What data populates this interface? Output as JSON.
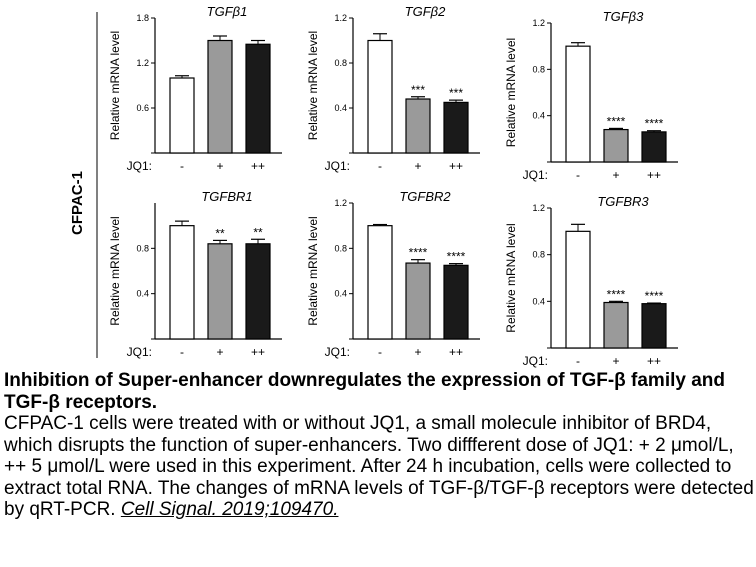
{
  "cell_line": "CFPAC-1",
  "caption": {
    "title": "Inhibition of Super-enhancer downregulates the expression of TGF-β family and TGF-β receptors.",
    "body": "CFPAC-1 cells were treated with or without JQ1, a small molecule inhibitor of BRD4, which disrupts the function of super-enhancers. Two diffferent dose of JQ1: + 2 μmol/L, ++ 5 μmol/L were used in this experiment. After 24 h incubation, cells were collected to extract total RNA. The changes of mRNA levels of TGF-β/TGF-β receptors were detected by qRT-PCR.",
    "citation": "Cell Signal. 2019;109470."
  },
  "colors": {
    "control": "#ffffff",
    "low_dose": "#9a9a9a",
    "high_dose": "#1a1a1a",
    "axis": "#000000"
  },
  "chart_data": [
    {
      "type": "bar",
      "title": "TGFβ1",
      "ylabel": "Relative mRNA level",
      "xaxis_prefix": "JQ1:",
      "categories": [
        "-",
        "+",
        "++"
      ],
      "values": [
        1.0,
        1.5,
        1.45
      ],
      "errors": [
        0.03,
        0.06,
        0.05
      ],
      "significance": [
        "",
        "",
        ""
      ],
      "ylim": [
        0,
        1.8
      ],
      "yticks": [
        "0.6",
        "1.2",
        "1.8"
      ]
    },
    {
      "type": "bar",
      "title": "TGFβ2",
      "ylabel": "Relative mRNA level",
      "xaxis_prefix": "JQ1:",
      "categories": [
        "-",
        "+",
        "++"
      ],
      "values": [
        1.0,
        0.48,
        0.45
      ],
      "errors": [
        0.06,
        0.02,
        0.02
      ],
      "significance": [
        "",
        "***",
        "***"
      ],
      "ylim": [
        0,
        1.2
      ],
      "yticks": [
        "0.4",
        "0.8",
        "1.2"
      ]
    },
    {
      "type": "bar",
      "title": "TGFβ3",
      "ylabel": "Relative mRNA level",
      "xaxis_prefix": "JQ1:",
      "categories": [
        "-",
        "+",
        "++"
      ],
      "values": [
        1.0,
        0.28,
        0.26
      ],
      "errors": [
        0.03,
        0.01,
        0.01
      ],
      "significance": [
        "",
        "****",
        "****"
      ],
      "ylim": [
        0,
        1.2
      ],
      "yticks": [
        "0.4",
        "0.8",
        "1.2"
      ]
    },
    {
      "type": "bar",
      "title": "TGFBR1",
      "ylabel": "Relative mRNA level",
      "xaxis_prefix": "JQ1:",
      "categories": [
        "-",
        "+",
        "++"
      ],
      "values": [
        1.0,
        0.84,
        0.84
      ],
      "errors": [
        0.04,
        0.03,
        0.04
      ],
      "significance": [
        "",
        "**",
        "**"
      ],
      "ylim": [
        0,
        1.2
      ],
      "yticks": [
        "0.4",
        "0.8"
      ]
    },
    {
      "type": "bar",
      "title": "TGFBR2",
      "ylabel": "Relative mRNA level",
      "xaxis_prefix": "JQ1:",
      "categories": [
        "-",
        "+",
        "++"
      ],
      "values": [
        1.0,
        0.67,
        0.65
      ],
      "errors": [
        0.01,
        0.03,
        0.015
      ],
      "significance": [
        "",
        "****",
        "****"
      ],
      "ylim": [
        0,
        1.2
      ],
      "yticks": [
        "0.4",
        "0.8",
        "1.2"
      ]
    },
    {
      "type": "bar",
      "title": "TGFBR3",
      "ylabel": "Relative mRNA level",
      "xaxis_prefix": "JQ1:",
      "categories": [
        "-",
        "+",
        "++"
      ],
      "values": [
        1.0,
        0.39,
        0.38
      ],
      "errors": [
        0.06,
        0.01,
        0.005
      ],
      "significance": [
        "",
        "****",
        "****"
      ],
      "ylim": [
        0,
        1.2
      ],
      "yticks": [
        "0.4",
        "0.8",
        "1.2"
      ]
    }
  ]
}
